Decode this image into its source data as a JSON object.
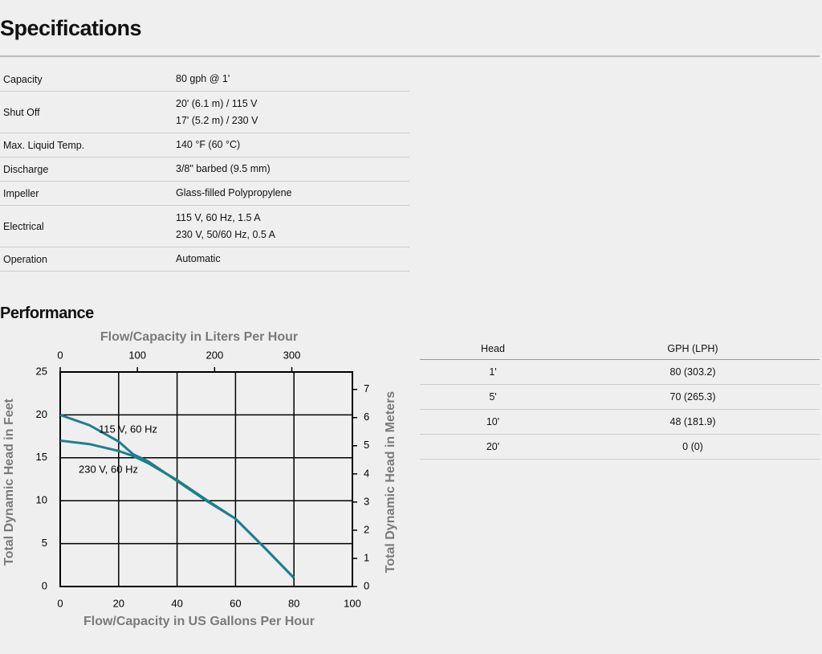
{
  "specifications": {
    "title": "Specifications",
    "rows": [
      {
        "label": "Capacity",
        "values": [
          "80 gph @ 1'"
        ]
      },
      {
        "label": "Shut Off",
        "values": [
          "20' (6.1 m) / 115 V",
          "17' (5.2 m) / 230 V"
        ]
      },
      {
        "label": "Max. Liquid Temp.",
        "values": [
          "140 °F (60 °C)"
        ]
      },
      {
        "label": "Discharge",
        "values": [
          "3/8\" barbed (9.5 mm)"
        ]
      },
      {
        "label": "Impeller",
        "values": [
          "Glass-filled Polypropylene"
        ]
      },
      {
        "label": "Electrical",
        "values": [
          "115 V, 60 Hz, 1.5 A",
          "230 V, 50/60 Hz, 0.5 A"
        ]
      },
      {
        "label": "Operation",
        "values": [
          "Automatic"
        ]
      }
    ]
  },
  "performance": {
    "title": "Performance",
    "chart": {
      "type": "line",
      "x_title": "Flow/Capacity in US Gallons Per Hour",
      "x2_title": "Flow/Capacity in Liters Per Hour",
      "y_title": "Total Dynamic Head in Feet",
      "y2_title": "Total Dynamic Head in Meters",
      "xlim": [
        0,
        100
      ],
      "xticks": [
        0,
        20,
        40,
        60,
        80,
        100
      ],
      "x2lim": [
        0,
        378.5
      ],
      "x2ticks": [
        0,
        100,
        200,
        300
      ],
      "ylim": [
        0,
        25
      ],
      "yticks": [
        0,
        5,
        10,
        15,
        20,
        25
      ],
      "y2lim": [
        0,
        7.62
      ],
      "y2ticks": [
        0,
        1,
        2,
        3,
        4,
        5,
        6,
        7
      ],
      "grid": true,
      "series": [
        {
          "name": "115 V, 60 Hz",
          "color": "#1d7f8b",
          "x": [
            0,
            10,
            20,
            25,
            30,
            40,
            50,
            60,
            70,
            80
          ],
          "values": [
            20,
            18.8,
            16.9,
            15.4,
            14.6,
            12.3,
            10,
            7.9,
            4.5,
            1
          ]
        },
        {
          "name": "230 V, 60 Hz",
          "color": "#1d7f8b",
          "x": [
            0,
            10,
            20,
            25,
            30,
            40,
            50,
            60,
            70,
            80
          ],
          "values": [
            17,
            16.6,
            15.8,
            15.2,
            14.4,
            12.4,
            10.1,
            7.9,
            4.5,
            1
          ]
        }
      ]
    },
    "table": {
      "header": [
        "Head",
        "GPH (LPH)"
      ],
      "rows": [
        [
          "1'",
          "80 (303.2)"
        ],
        [
          "5'",
          "70 (265.3)"
        ],
        [
          "10'",
          "48 (181.9)"
        ],
        [
          "20'",
          "0 (0)"
        ]
      ]
    }
  }
}
